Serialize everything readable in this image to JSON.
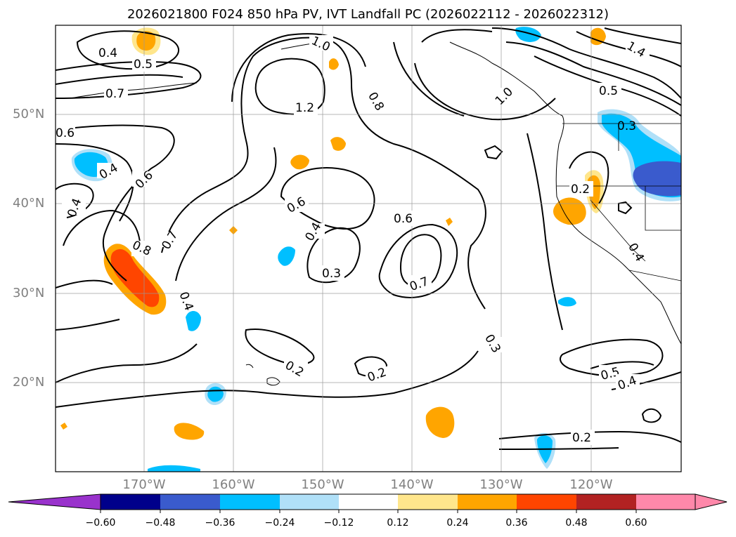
{
  "title": "2026021800 F024 850 hPa PV, IVT Landfall PC (2026022112 - 2026022312)",
  "map": {
    "projection": "PlateCarree",
    "lon_range": [
      -180,
      -110
    ],
    "lat_range": [
      10,
      60
    ],
    "lat_labels": [
      "20°N",
      "30°N",
      "40°N",
      "50°N"
    ],
    "lon_labels": [
      "170°W",
      "160°W",
      "150°W",
      "140°W",
      "130°W",
      "120°W"
    ],
    "gridlines": true,
    "contour_labels": [
      "1.0",
      "0.4",
      "0.5",
      "0.7",
      "1.2",
      "0.8",
      "1.0",
      "1.4",
      "0.5",
      "0.3",
      "0.6",
      "0.4",
      "0.6",
      "0.2",
      "0.4",
      "0.6",
      "0.6",
      "0.8",
      "0.7",
      "0.4",
      "0.3",
      "0.7",
      "0.4",
      "0.4",
      "0.3",
      "0.2",
      "0.2",
      "0.5",
      "0.4",
      "0.2"
    ]
  },
  "colorbar": {
    "ticks": [
      "−0.60",
      "−0.48",
      "−0.36",
      "−0.24",
      "−0.12",
      "0.12",
      "0.24",
      "0.36",
      "0.48",
      "0.60"
    ],
    "colors": [
      "#9932cc",
      "#00008b",
      "#3a5bcd",
      "#00bfff",
      "#b0e0f8",
      "#ffffff",
      "#ffe68c",
      "#ffa500",
      "#ff4500",
      "#b22222",
      "#ff88aa"
    ]
  }
}
